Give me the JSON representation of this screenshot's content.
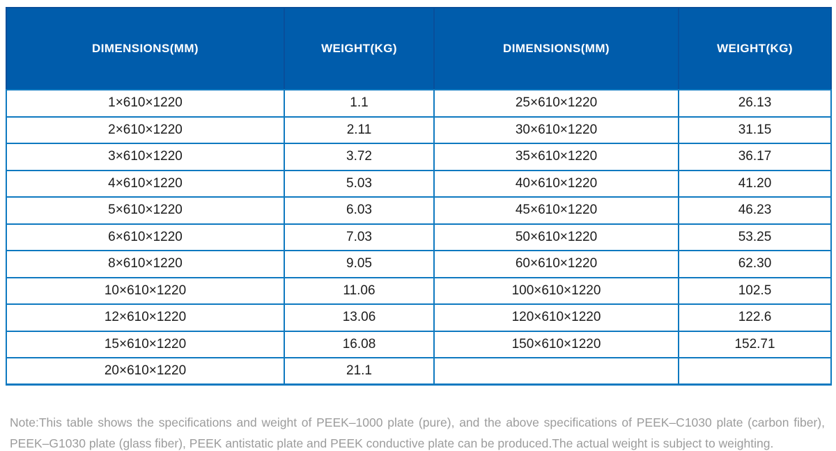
{
  "table": {
    "columns": [
      "DIMENSIONS(MM)",
      "WEIGHT(KG)",
      "DIMENSIONS(MM)",
      "WEIGHT(KG)"
    ],
    "rows": [
      [
        "1×610×1220",
        "1.1",
        "25×610×1220",
        "26.13"
      ],
      [
        "2×610×1220",
        "2.11",
        "30×610×1220",
        "31.15"
      ],
      [
        "3×610×1220",
        "3.72",
        "35×610×1220",
        "36.17"
      ],
      [
        "4×610×1220",
        "5.03",
        "40×610×1220",
        "41.20"
      ],
      [
        "5×610×1220",
        "6.03",
        "45×610×1220",
        "46.23"
      ],
      [
        "6×610×1220",
        "7.03",
        "50×610×1220",
        "53.25"
      ],
      [
        "8×610×1220",
        "9.05",
        "60×610×1220",
        "62.30"
      ],
      [
        "10×610×1220",
        "11.06",
        "100×610×1220",
        "102.5"
      ],
      [
        "12×610×1220",
        "13.06",
        "120×610×1220",
        "122.6"
      ],
      [
        "15×610×1220",
        "16.08",
        "150×610×1220",
        "152.71"
      ],
      [
        "20×610×1220",
        "21.1",
        "",
        ""
      ]
    ]
  },
  "note": {
    "line1": "Note:This table shows the specifications and weight of PEEK–1000 plate (pure), and the above specifications of PEEK–C1030 plate (carbon fiber),",
    "line2": "PEEK–G1030 plate (glass fiber), PEEK antistatic plate and PEEK conductive plate can be produced.The actual weight is subject to weighting."
  },
  "colors": {
    "header_bg": "#005cab",
    "header_border": "#084f9b",
    "row_border": "#0e79c0",
    "header_text": "#ffffff",
    "cell_text": "#1c1c1c",
    "note_text": "#9c9c9c"
  }
}
